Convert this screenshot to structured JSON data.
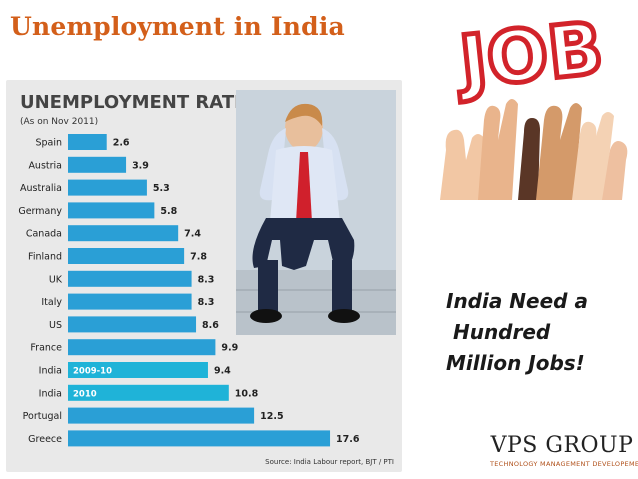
{
  "slide": {
    "title": "Unemployment in India",
    "slogan": [
      "India Need a",
      " Hundred",
      "Million Jobs!"
    ],
    "company_name": "VPS GROUP",
    "company_tagline": "TECHNOLOGY MANAGEMENT DEVELOPEMENT",
    "job_sign_text": "JOB"
  },
  "colors": {
    "title_orange": "#d35f1a",
    "bar_blue": "#2a9fd6",
    "bar_highlight": "#1fb3d8",
    "panel_gray": "#e9e9e9"
  },
  "icons": [
    "stressed-man-icon",
    "raised-hands-icon",
    "job-sign-icon"
  ],
  "chart_data": {
    "type": "bar",
    "orientation": "horizontal",
    "title": "UNEMPLOYMENT RATES",
    "subtitle": "(As on Nov 2011)",
    "source": "Source: India Labour report, BJT / PTI",
    "categories": [
      "Spain",
      "Austria",
      "Australia",
      "Germany",
      "Canada",
      "Finland",
      "UK",
      "Italy",
      "US",
      "France",
      "India",
      "India",
      "Portugal",
      "Greece"
    ],
    "bar_labels": [
      "",
      "",
      "",
      "",
      "",
      "",
      "",
      "",
      "",
      "",
      "2009-10",
      "2010",
      "",
      ""
    ],
    "values": [
      2.6,
      3.9,
      5.3,
      5.8,
      7.4,
      7.8,
      8.3,
      8.3,
      8.6,
      9.9,
      9.4,
      10.8,
      12.5,
      17.6
    ],
    "xlim": [
      0,
      18
    ],
    "grid": false,
    "legend": "none"
  }
}
